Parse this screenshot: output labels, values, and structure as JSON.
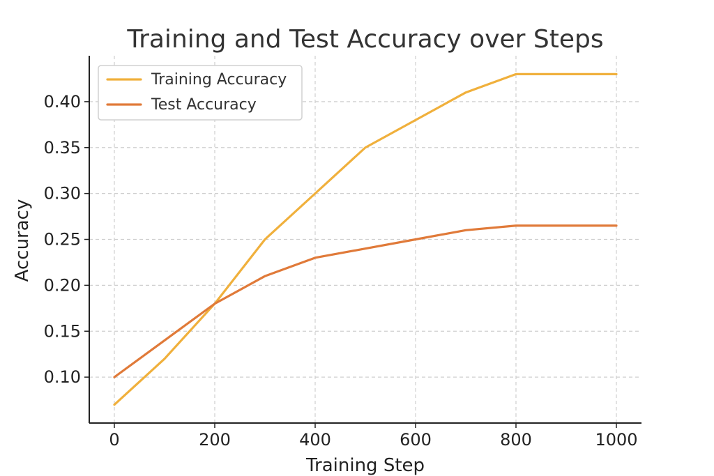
{
  "chart_data": {
    "type": "line",
    "title": "Training and Test Accuracy over Steps",
    "xlabel": "Training Step",
    "ylabel": "Accuracy",
    "x": [
      0,
      100,
      200,
      300,
      400,
      500,
      600,
      700,
      800,
      900,
      1000
    ],
    "xlim": [
      -50,
      1050
    ],
    "ylim": [
      0.05,
      0.45
    ],
    "x_ticks": [
      0,
      200,
      400,
      600,
      800,
      1000
    ],
    "x_tick_labels": [
      "0",
      "200",
      "400",
      "600",
      "800",
      "1000"
    ],
    "y_ticks": [
      0.1,
      0.15,
      0.2,
      0.25,
      0.3,
      0.35,
      0.4
    ],
    "y_tick_labels": [
      "0.10",
      "0.15",
      "0.20",
      "0.25",
      "0.30",
      "0.35",
      "0.40"
    ],
    "grid": true,
    "legend_position": "top-left",
    "series": [
      {
        "name": "Training Accuracy",
        "color": "#f0b03c",
        "values": [
          0.07,
          0.12,
          0.18,
          0.25,
          0.3,
          0.35,
          0.38,
          0.41,
          0.43,
          0.43,
          0.43
        ]
      },
      {
        "name": "Test Accuracy",
        "color": "#e07a39",
        "values": [
          0.1,
          0.14,
          0.18,
          0.21,
          0.23,
          0.24,
          0.25,
          0.26,
          0.265,
          0.265,
          0.265
        ]
      }
    ]
  }
}
